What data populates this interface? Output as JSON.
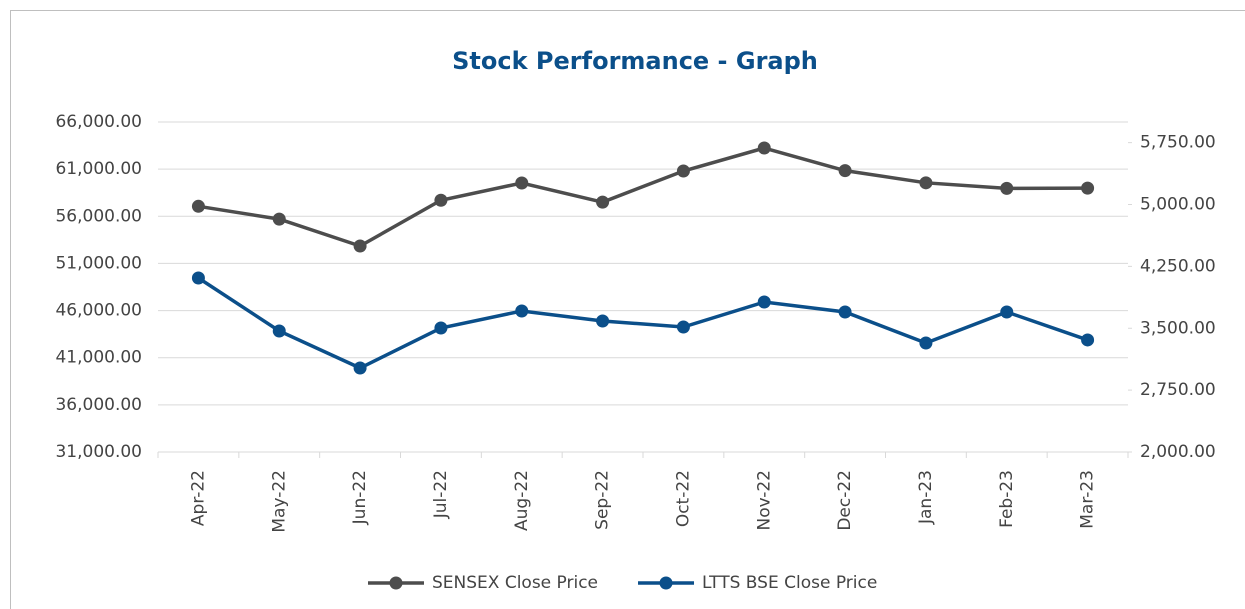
{
  "chart_data": {
    "type": "line",
    "title": "Stock Performance - Graph",
    "categories": [
      "Apr-22",
      "May-22",
      "Jun-22",
      "Jul-22",
      "Aug-22",
      "Sep-22",
      "Oct-22",
      "Nov-22",
      "Dec-22",
      "Jan-23",
      "Feb-23",
      "Mar-23"
    ],
    "series": [
      {
        "name": "SENSEX Close Price",
        "color": "#4d4d4d",
        "values": [
          57060,
          55700,
          52850,
          57700,
          59530,
          57500,
          60800,
          63240,
          60840,
          59550,
          58960,
          58990
        ]
      },
      {
        "name": "LTTS BSE Close Price",
        "color": "#0b4f8a",
        "axis": "y2",
        "values": [
          4109,
          3467,
          3018,
          3503,
          3709,
          3588,
          3515,
          3818,
          3697,
          3321,
          3697,
          3358
        ]
      }
    ],
    "ylim": [
      31000,
      66000
    ],
    "yticks": [
      {
        "value": 31000,
        "label": "31,000.00"
      },
      {
        "value": 36000,
        "label": "36,000.00"
      },
      {
        "value": 41000,
        "label": "41,000.00"
      },
      {
        "value": 46000,
        "label": "46,000.00"
      },
      {
        "value": 51000,
        "label": "51,000.00"
      },
      {
        "value": 56000,
        "label": "56,000.00"
      },
      {
        "value": 61000,
        "label": "61,000.00"
      },
      {
        "value": 66000,
        "label": "66,000.00"
      }
    ],
    "y2lim": [
      2000,
      6000
    ],
    "y2ticks": [
      {
        "value": 2000,
        "label": "2,000.00"
      },
      {
        "value": 2750,
        "label": "2,750.00"
      },
      {
        "value": 3500,
        "label": "3,500.00"
      },
      {
        "value": 4250,
        "label": "4,250.00"
      },
      {
        "value": 5000,
        "label": "5,000.00"
      },
      {
        "value": 5750,
        "label": "5,750.00"
      }
    ],
    "grid": true,
    "legend": "bottom"
  }
}
